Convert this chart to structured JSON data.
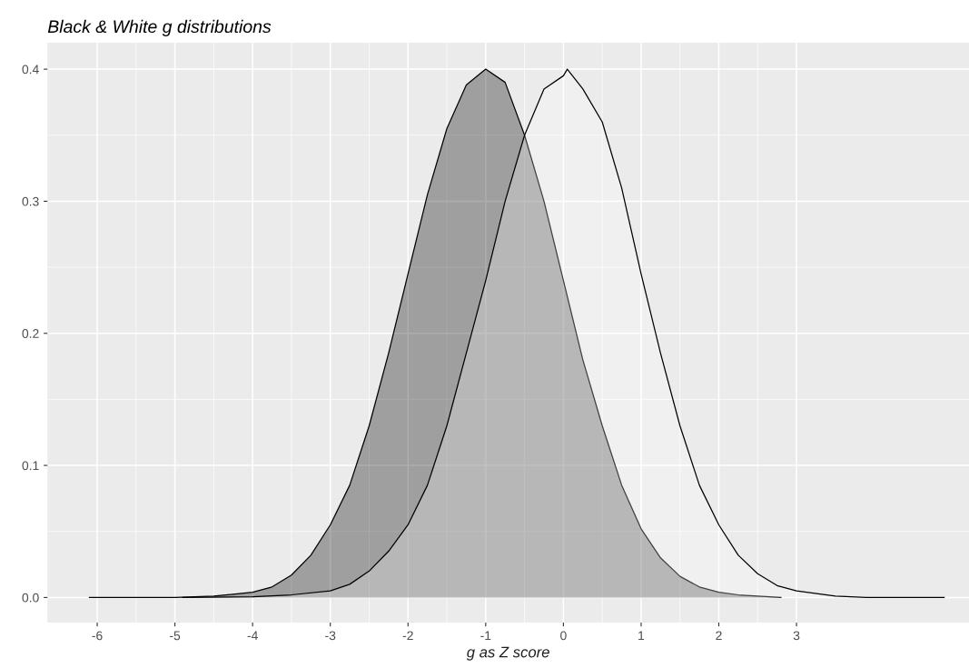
{
  "chart_data": {
    "type": "area",
    "title": "Black & White g distributions",
    "xlabel": "g as Z score",
    "series": [
      {
        "color": "#000000",
        "x": [
          -6.1,
          -5,
          -4.5,
          -4,
          -3.75,
          -3.5,
          -3.25,
          -3,
          -2.75,
          -2.5,
          -2.25,
          -2,
          -1.75,
          -1.5,
          -1.25,
          -1,
          -0.75,
          -0.5,
          -0.25,
          0,
          0.25,
          0.5,
          0.75,
          1,
          1.25,
          1.5,
          1.75,
          2,
          2.25,
          2.5,
          2.8
        ],
        "values": [
          0,
          0,
          0.001,
          0.004,
          0.008,
          0.017,
          0.032,
          0.055,
          0.085,
          0.13,
          0.185,
          0.245,
          0.305,
          0.355,
          0.388,
          0.4,
          0.39,
          0.35,
          0.3,
          0.24,
          0.18,
          0.13,
          0.085,
          0.052,
          0.03,
          0.016,
          0.008,
          0.004,
          0.002,
          0.001,
          0
        ]
      },
      {
        "color": "#ffffff",
        "x": [
          -4.9,
          -4,
          -3.5,
          -3,
          -2.75,
          -2.5,
          -2.25,
          -2,
          -1.75,
          -1.5,
          -1.25,
          -1,
          -0.75,
          -0.5,
          -0.25,
          0,
          0.05,
          0.25,
          0.5,
          0.75,
          1,
          1.25,
          1.5,
          1.75,
          2,
          2.25,
          2.5,
          2.75,
          3,
          3.5,
          3.9,
          4.9
        ],
        "values": [
          0,
          0.0005,
          0.002,
          0.005,
          0.01,
          0.02,
          0.035,
          0.055,
          0.085,
          0.13,
          0.185,
          0.24,
          0.3,
          0.35,
          0.385,
          0.395,
          0.4,
          0.385,
          0.36,
          0.31,
          0.245,
          0.185,
          0.13,
          0.085,
          0.055,
          0.032,
          0.018,
          0.009,
          0.005,
          0.001,
          0,
          0
        ]
      }
    ],
    "xlim": [
      -6.64,
      5.22
    ],
    "ylim": [
      -0.019,
      0.42
    ],
    "xticks": [
      -6,
      -5,
      -4,
      -3,
      -2,
      -1,
      0,
      1,
      2,
      3
    ],
    "yticks": [
      {
        "value": 0,
        "label": "0.0"
      },
      0.1,
      0.2,
      0.3,
      0.4
    ],
    "grid": true,
    "legend": false
  }
}
